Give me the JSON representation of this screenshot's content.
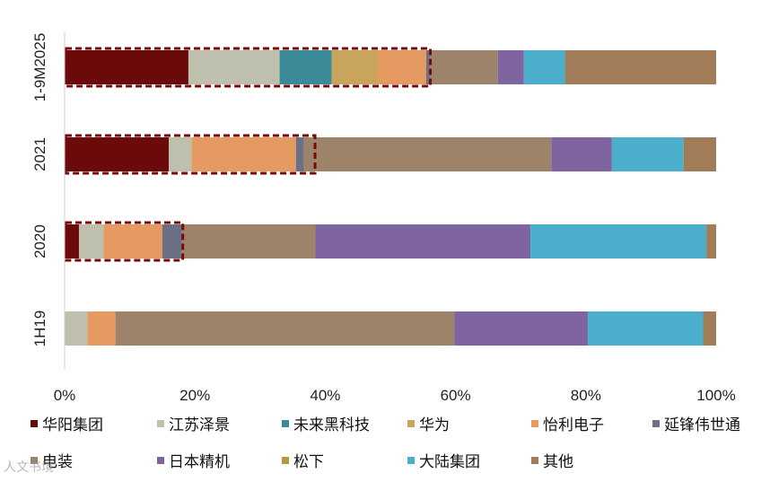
{
  "chart_data": {
    "type": "bar",
    "orientation": "horizontal",
    "stacked": true,
    "categories": [
      "1-9M2025",
      "2021",
      "2020",
      "1H19"
    ],
    "xlim": [
      0,
      100
    ],
    "x_ticks": [
      "0%",
      "20%",
      "40%",
      "60%",
      "80%",
      "100%"
    ],
    "grid": false,
    "legend_position": "bottom",
    "series": [
      {
        "name": "华阳集团",
        "color": "#6B0A0A",
        "values": [
          19,
          16,
          2.2,
          0
        ]
      },
      {
        "name": "江苏泽景",
        "color": "#BFBFAE",
        "values": [
          14,
          3.5,
          3.8,
          3.5
        ]
      },
      {
        "name": "未来黑科技",
        "color": "#3A8A98",
        "values": [
          8,
          0,
          0,
          0
        ]
      },
      {
        "name": "华为",
        "color": "#C8A55A",
        "values": [
          7,
          0,
          0,
          0
        ]
      },
      {
        "name": "怡利电子",
        "color": "#E59A62",
        "values": [
          7.5,
          16,
          9,
          4.3
        ]
      },
      {
        "name": "延锋伟世通",
        "color": "#6B7085",
        "values": [
          0.5,
          1.2,
          3,
          0
        ]
      },
      {
        "name": "电装",
        "color": "#9C8369",
        "values": [
          10.5,
          38,
          20.5,
          52
        ]
      },
      {
        "name": "日本精机",
        "color": "#7E65A0",
        "values": [
          4,
          9.3,
          33,
          20.5
        ]
      },
      {
        "name": "松下",
        "color": "#B8963C",
        "values": [
          0,
          0,
          0,
          0
        ]
      },
      {
        "name": "大陆集团",
        "color": "#4BAFCB",
        "values": [
          6.3,
          11,
          27,
          17.7
        ]
      },
      {
        "name": "其他",
        "color": "#A07C58",
        "values": [
          23.2,
          5,
          1.5,
          2
        ]
      }
    ],
    "highlight_boxes": [
      {
        "category": "1-9M2025",
        "to_percent": 56
      },
      {
        "category": "2021",
        "to_percent": 38.3
      },
      {
        "category": "2020",
        "to_percent": 18
      }
    ]
  },
  "watermark_text": "人文书境"
}
